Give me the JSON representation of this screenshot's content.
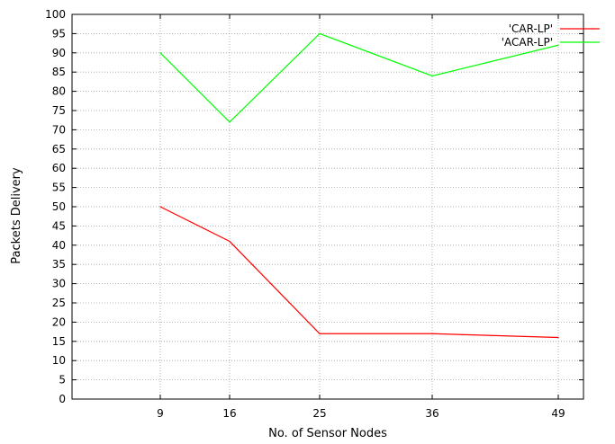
{
  "chart_data": {
    "type": "line",
    "title": "",
    "xlabel": "No. of Sensor Nodes",
    "ylabel": "Packets Delivery",
    "categories": [
      "9",
      "16",
      "25",
      "36",
      "49"
    ],
    "ylim": [
      0,
      100
    ],
    "yticks": [
      0,
      5,
      10,
      15,
      20,
      25,
      30,
      35,
      40,
      45,
      50,
      55,
      60,
      65,
      70,
      75,
      80,
      85,
      90,
      95,
      100
    ],
    "grid": true,
    "legend_position": "top-right",
    "series": [
      {
        "name": "'CAR-LP'",
        "color": "#ff0000",
        "values": [
          50,
          41,
          17,
          17,
          16
        ]
      },
      {
        "name": "'ACAR-LP'",
        "color": "#00ff00",
        "values": [
          90,
          72,
          95,
          84,
          92
        ]
      }
    ]
  }
}
